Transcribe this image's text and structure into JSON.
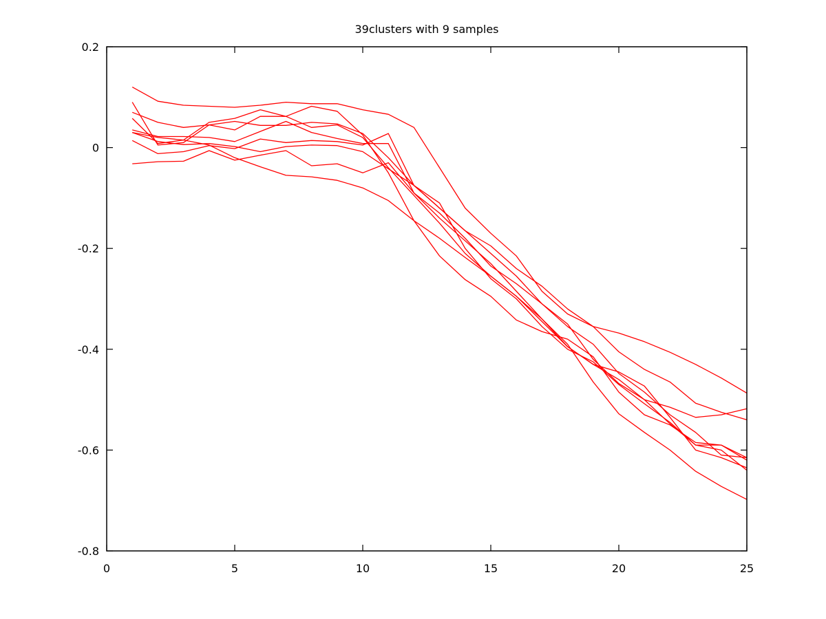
{
  "chart_data": {
    "type": "line",
    "title": "39clusters with 9 samples",
    "xlabel": "",
    "ylabel": "",
    "xlim": [
      0,
      25
    ],
    "ylim": [
      -0.8,
      0.2
    ],
    "xticks": [
      0,
      5,
      10,
      15,
      20,
      25
    ],
    "xtick_labels": [
      "0",
      "5",
      "10",
      "15",
      "20",
      "25"
    ],
    "yticks": [
      0.2,
      0,
      -0.2,
      -0.4,
      -0.6,
      -0.8
    ],
    "ytick_labels": [
      "0.2",
      "0",
      "-0.2",
      "-0.4",
      "-0.6",
      "-0.8"
    ],
    "grid": false,
    "line_color": "#ff0000",
    "x": [
      1,
      2,
      3,
      4,
      5,
      6,
      7,
      8,
      9,
      10,
      11,
      12,
      13,
      14,
      15,
      16,
      17,
      18,
      19,
      20,
      21,
      22,
      23,
      24,
      25
    ],
    "series": [
      {
        "values": [
          0.12,
          0.092,
          0.084,
          0.082,
          0.08,
          0.084,
          0.09,
          0.087,
          0.087,
          0.075,
          0.066,
          0.04,
          -0.04,
          -0.12,
          -0.17,
          -0.215,
          -0.285,
          -0.33,
          -0.355,
          -0.368,
          -0.385,
          -0.406,
          -0.43,
          -0.457,
          -0.487
        ]
      },
      {
        "values": [
          0.07,
          0.05,
          0.04,
          0.045,
          0.052,
          0.044,
          0.044,
          0.05,
          0.047,
          0.028,
          -0.02,
          -0.075,
          -0.12,
          -0.165,
          -0.195,
          -0.24,
          -0.275,
          -0.32,
          -0.355,
          -0.405,
          -0.44,
          -0.465,
          -0.507,
          -0.525,
          -0.54
        ]
      },
      {
        "values": [
          0.09,
          0.005,
          0.01,
          0.045,
          0.035,
          0.062,
          0.062,
          0.04,
          0.045,
          0.02,
          -0.04,
          -0.095,
          -0.15,
          -0.21,
          -0.255,
          -0.295,
          -0.345,
          -0.395,
          -0.43,
          -0.46,
          -0.5,
          -0.515,
          -0.535,
          -0.53,
          -0.518
        ]
      },
      {
        "values": [
          0.058,
          0.008,
          0.015,
          0.05,
          0.058,
          0.075,
          0.062,
          0.082,
          0.072,
          0.025,
          -0.05,
          -0.145,
          -0.215,
          -0.262,
          -0.295,
          -0.342,
          -0.365,
          -0.38,
          -0.415,
          -0.485,
          -0.53,
          -0.55,
          -0.585,
          -0.59,
          -0.62
        ]
      },
      {
        "values": [
          0.035,
          0.022,
          0.022,
          0.02,
          0.012,
          0.032,
          0.052,
          0.03,
          0.018,
          0.008,
          0.008,
          -0.09,
          -0.13,
          -0.18,
          -0.235,
          -0.27,
          -0.31,
          -0.35,
          -0.42,
          -0.468,
          -0.5,
          -0.548,
          -0.59,
          -0.6,
          -0.64
        ]
      },
      {
        "values": [
          0.03,
          0.012,
          0.006,
          0.008,
          0.002,
          -0.008,
          0.002,
          0.005,
          0.004,
          -0.008,
          -0.042,
          -0.075,
          -0.12,
          -0.165,
          -0.21,
          -0.255,
          -0.31,
          -0.355,
          -0.39,
          -0.448,
          -0.485,
          -0.53,
          -0.565,
          -0.61,
          -0.615
        ]
      },
      {
        "values": [
          0.014,
          -0.012,
          -0.008,
          0.004,
          -0.002,
          0.017,
          0.01,
          0.014,
          0.012,
          0.005,
          0.028,
          -0.075,
          -0.11,
          -0.2,
          -0.26,
          -0.3,
          -0.355,
          -0.4,
          -0.425,
          -0.47,
          -0.508,
          -0.545,
          -0.59,
          -0.59,
          -0.615
        ]
      },
      {
        "values": [
          -0.032,
          -0.028,
          -0.027,
          -0.006,
          -0.025,
          -0.015,
          -0.006,
          -0.036,
          -0.032,
          -0.05,
          -0.03,
          -0.09,
          -0.14,
          -0.185,
          -0.23,
          -0.285,
          -0.34,
          -0.395,
          -0.43,
          -0.445,
          -0.473,
          -0.535,
          -0.6,
          -0.615,
          -0.635
        ]
      },
      {
        "values": [
          0.03,
          0.02,
          0.015,
          0.005,
          -0.02,
          -0.038,
          -0.055,
          -0.058,
          -0.065,
          -0.08,
          -0.105,
          -0.145,
          -0.18,
          -0.218,
          -0.255,
          -0.295,
          -0.34,
          -0.39,
          -0.465,
          -0.528,
          -0.565,
          -0.6,
          -0.642,
          -0.672,
          -0.698
        ]
      }
    ]
  }
}
